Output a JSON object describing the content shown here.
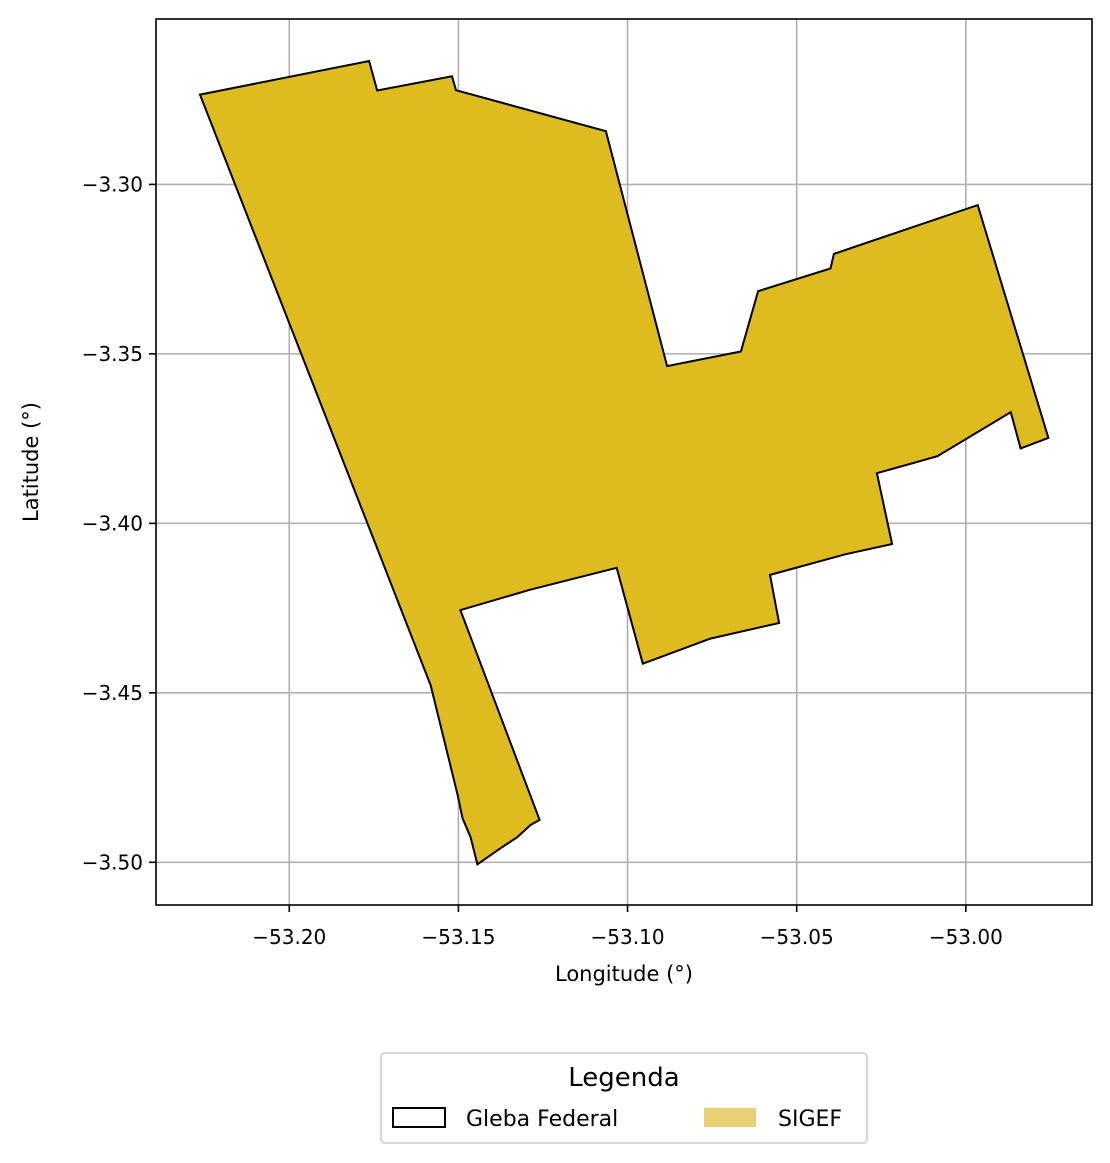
{
  "chart_data": {
    "type": "map",
    "xlabel": "Longitude (°)",
    "ylabel": "Latitude (°)",
    "xlim": [
      -53.2394,
      -52.9627
    ],
    "ylim": [
      -3.5126,
      -3.2512
    ],
    "grid": true,
    "xticks": [
      -53.2,
      -53.15,
      -53.1,
      -53.05,
      -53.0
    ],
    "yticks": [
      -3.3,
      -3.35,
      -3.4,
      -3.45,
      -3.5
    ],
    "xtick_labels": [
      "−53.20",
      "−53.15",
      "−53.10",
      "−53.05",
      "−53.00"
    ],
    "ytick_labels": [
      "−3.30",
      "−3.35",
      "−3.40",
      "−3.45",
      "−3.50"
    ],
    "polygon": {
      "fill": "#DEBC20",
      "edge": "#000000",
      "points": [
        [
          -53.2264,
          -3.2735
        ],
        [
          -53.1764,
          -3.2636
        ],
        [
          -53.174,
          -3.2723
        ],
        [
          -53.1519,
          -3.2681
        ],
        [
          -53.1507,
          -3.2722
        ],
        [
          -53.1064,
          -3.2843
        ],
        [
          -53.0883,
          -3.3536
        ],
        [
          -53.0665,
          -3.3493
        ],
        [
          -53.0614,
          -3.3315
        ],
        [
          -53.04,
          -3.3248
        ],
        [
          -53.039,
          -3.3205
        ],
        [
          -52.9965,
          -3.3061
        ],
        [
          -52.9756,
          -3.3748
        ],
        [
          -52.9838,
          -3.3779
        ],
        [
          -52.9867,
          -3.3672
        ],
        [
          -53.0084,
          -3.3802
        ],
        [
          -53.0263,
          -3.3852
        ],
        [
          -53.0218,
          -3.4061
        ],
        [
          -53.0355,
          -3.4091
        ],
        [
          -53.0579,
          -3.4152
        ],
        [
          -53.0552,
          -3.4294
        ],
        [
          -53.0755,
          -3.434
        ],
        [
          -53.0955,
          -3.4414
        ],
        [
          -53.1032,
          -3.4131
        ],
        [
          -53.1289,
          -3.4196
        ],
        [
          -53.1494,
          -3.4256
        ],
        [
          -53.126,
          -3.4875
        ],
        [
          -53.1287,
          -3.489
        ],
        [
          -53.1325,
          -3.4925
        ],
        [
          -53.1379,
          -3.4961
        ],
        [
          -53.1444,
          -3.5006
        ],
        [
          -53.1464,
          -3.4926
        ],
        [
          -53.1488,
          -3.487
        ],
        [
          -53.1502,
          -3.4802
        ],
        [
          -53.152,
          -3.473
        ],
        [
          -53.1582,
          -3.4478
        ]
      ]
    }
  },
  "legend": {
    "title": "Legenda",
    "items": [
      {
        "label": "Gleba Federal",
        "style": "outline",
        "edge": "#000000"
      },
      {
        "label": "SIGEF",
        "style": "fill",
        "fill": "#E8D174"
      }
    ]
  }
}
